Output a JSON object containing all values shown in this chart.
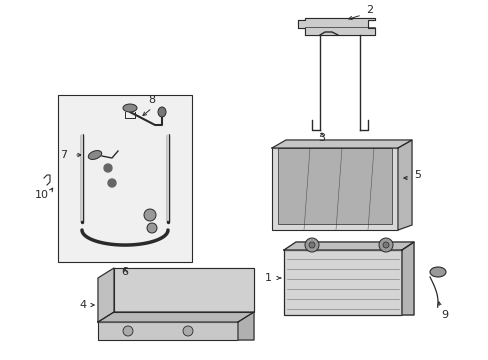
{
  "bg_color": "#ffffff",
  "lc": "#2a2a2a",
  "fig_width": 4.89,
  "fig_height": 3.6,
  "dpi": 100,
  "font_size": 8
}
